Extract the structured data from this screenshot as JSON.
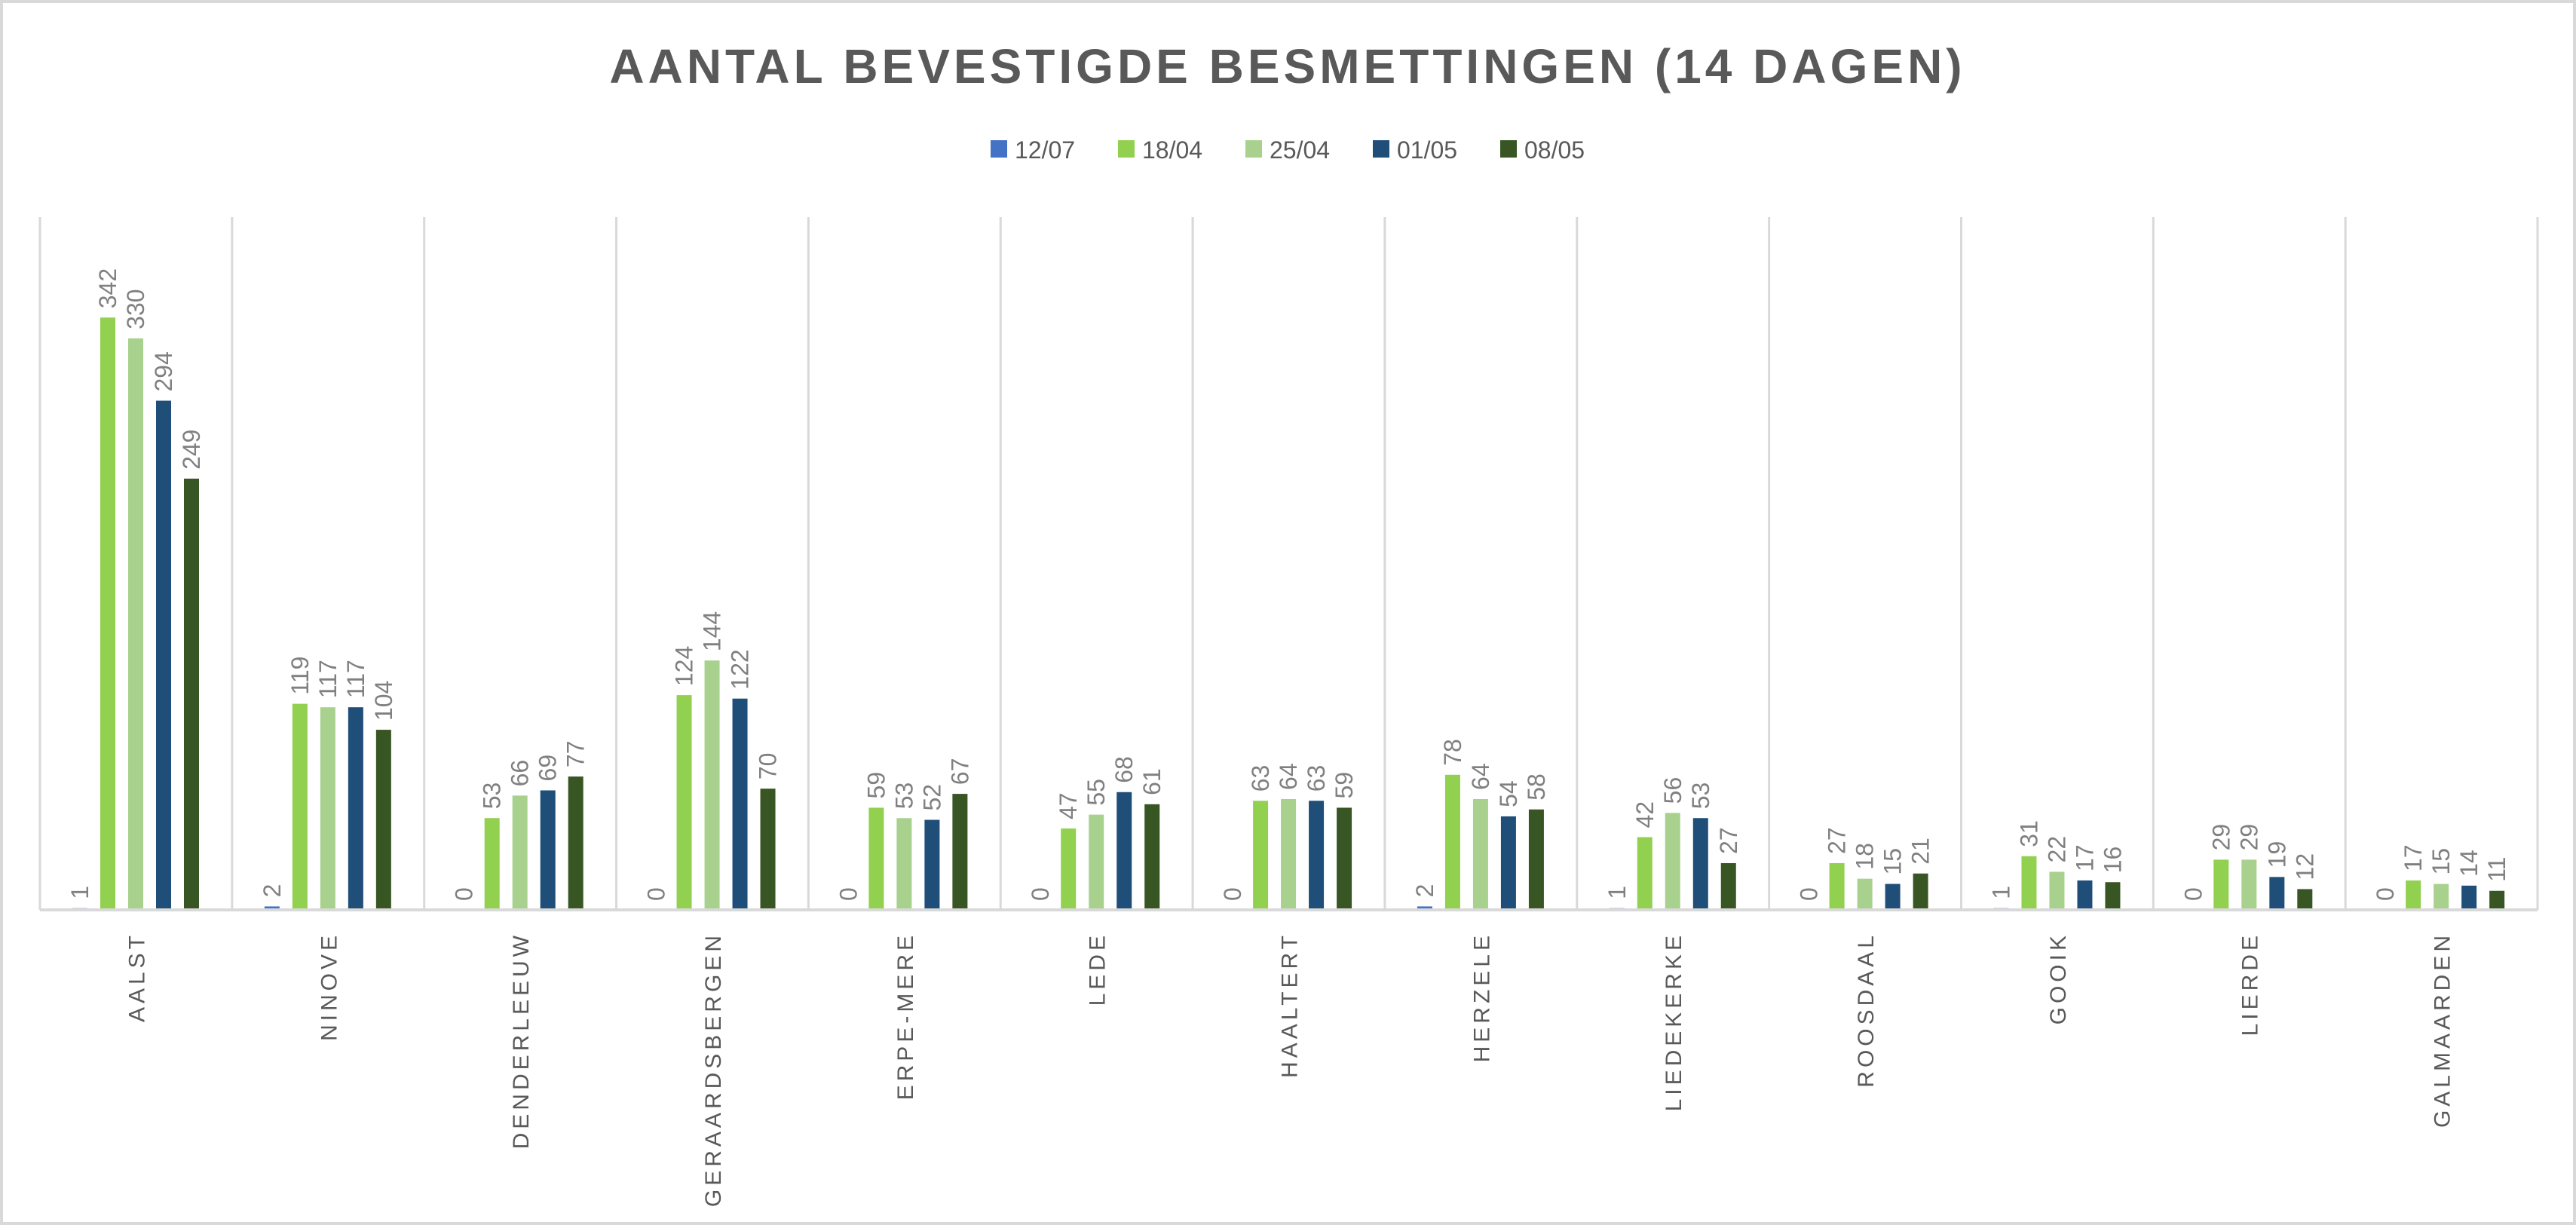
{
  "chart_data": {
    "type": "bar",
    "title": "AANTAL BEVESTIGDE BESMETTINGEN (14 DAGEN)",
    "xlabel": "",
    "ylabel": "",
    "ylim": [
      0,
      400
    ],
    "grid": "vertical category separators",
    "legend_position": "top",
    "categories": [
      "AALST",
      "NINOVE",
      "DENDERLEEUW",
      "GERAARDSBERGEN",
      "ERPE-MERE",
      "LEDE",
      "HAALTERT",
      "HERZELE",
      "LIEDEKERKE",
      "ROOSDAAL",
      "GOOIK",
      "LIERDE",
      "GALMAARDEN"
    ],
    "series": [
      {
        "name": "12/07",
        "color": "#4472c4",
        "values": [
          1,
          2,
          0,
          0,
          0,
          0,
          0,
          2,
          1,
          0,
          1,
          0,
          0
        ]
      },
      {
        "name": "18/04",
        "color": "#92d050",
        "values": [
          342,
          119,
          53,
          124,
          59,
          47,
          63,
          78,
          42,
          27,
          31,
          29,
          17
        ]
      },
      {
        "name": "25/04",
        "color": "#a9d18e",
        "values": [
          330,
          117,
          66,
          144,
          53,
          55,
          64,
          64,
          56,
          18,
          22,
          29,
          15
        ]
      },
      {
        "name": "01/05",
        "color": "#1f4e79",
        "values": [
          294,
          117,
          69,
          122,
          52,
          68,
          63,
          54,
          53,
          15,
          17,
          19,
          14
        ]
      },
      {
        "name": "08/05",
        "color": "#375623",
        "values": [
          249,
          104,
          77,
          70,
          67,
          61,
          59,
          58,
          27,
          21,
          16,
          12,
          11
        ]
      }
    ]
  }
}
